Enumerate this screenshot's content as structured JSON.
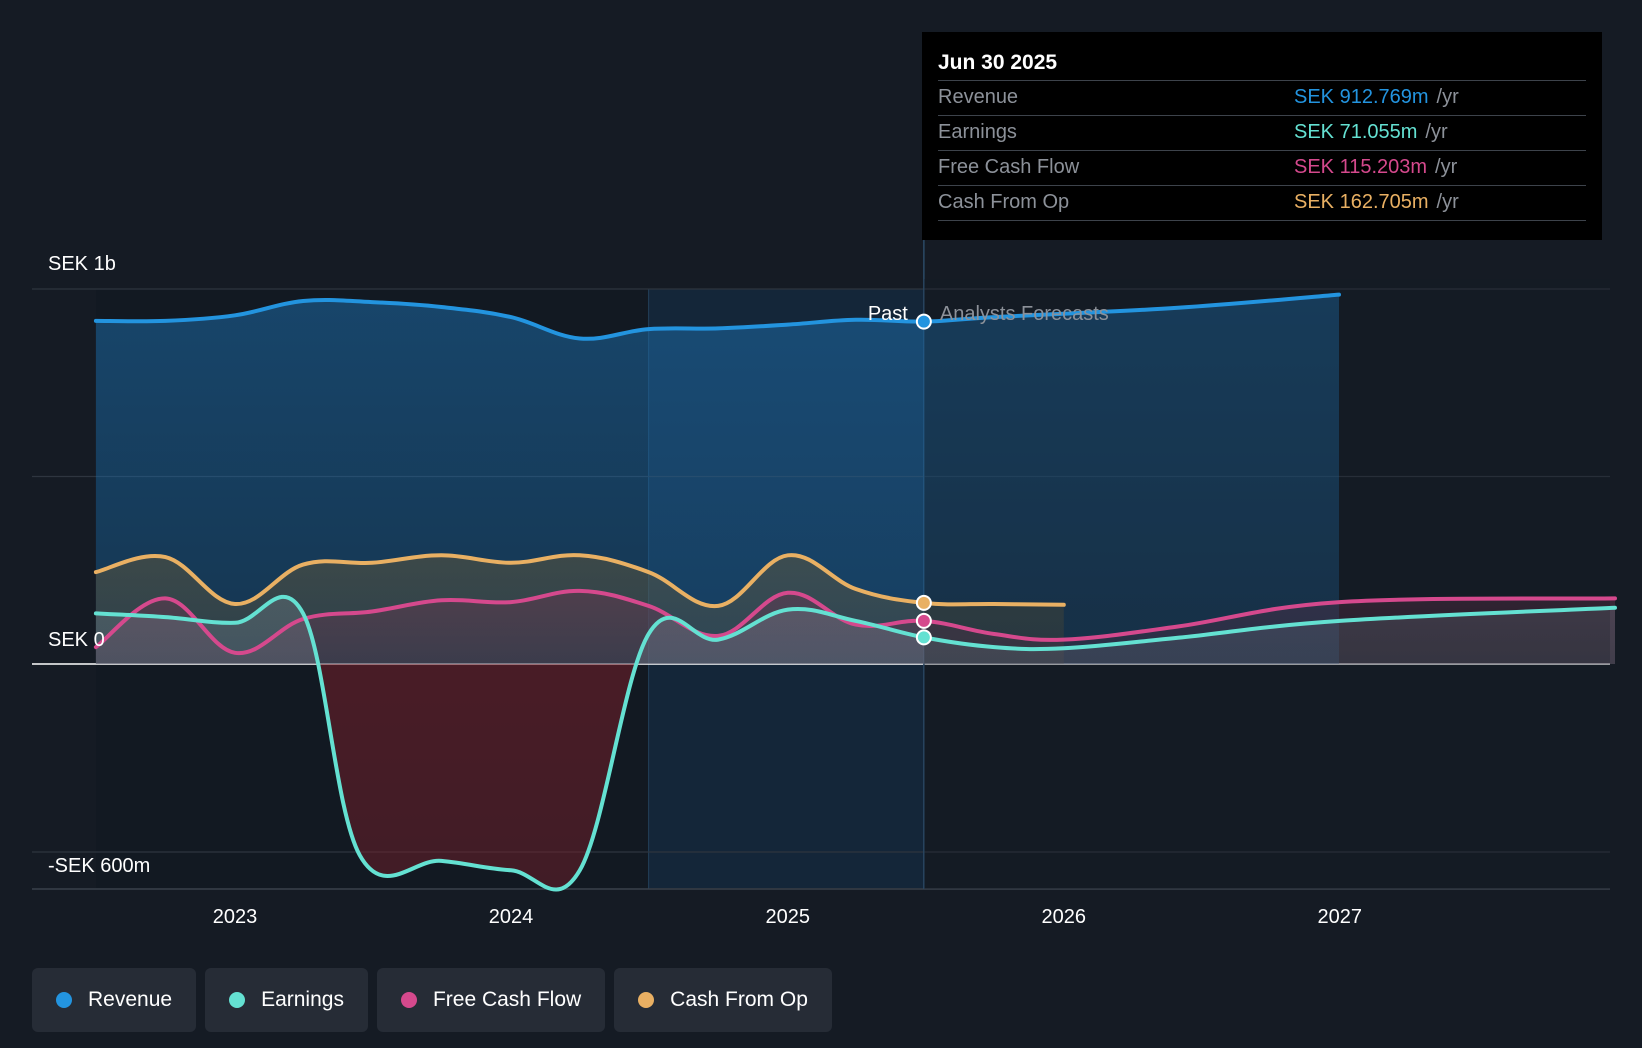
{
  "chart_data": {
    "type": "area",
    "currency": "SEK",
    "y_tick_labels": [
      "SEK 1b",
      "SEK 0",
      "-SEK 600m"
    ],
    "ylim": [
      -600,
      1000
    ],
    "x_tick_labels": [
      "2023",
      "2024",
      "2025",
      "2026",
      "2027"
    ],
    "xlim": [
      "2022-07-01",
      "2027-12-31"
    ],
    "past_label": "Past",
    "forecast_label": "Analysts Forecasts",
    "divider_date": "2025-06-30",
    "series": [
      {
        "name": "Revenue",
        "color": "#2394df",
        "points": [
          [
            "2022-07-01",
            915
          ],
          [
            "2022-10-01",
            915
          ],
          [
            "2023-01-01",
            930
          ],
          [
            "2023-04-01",
            968
          ],
          [
            "2023-07-01",
            965
          ],
          [
            "2023-10-01",
            952
          ],
          [
            "2024-01-01",
            925
          ],
          [
            "2024-04-01",
            868
          ],
          [
            "2024-07-01",
            893
          ],
          [
            "2024-10-01",
            895
          ],
          [
            "2025-01-01",
            905
          ],
          [
            "2025-04-01",
            918
          ],
          [
            "2025-06-30",
            913
          ],
          [
            "2025-10-01",
            925
          ],
          [
            "2026-06-01",
            950
          ],
          [
            "2026-12-31",
            985
          ]
        ]
      },
      {
        "name": "Earnings",
        "color": "#64e1d2",
        "points": [
          [
            "2022-07-01",
            135
          ],
          [
            "2022-10-01",
            125
          ],
          [
            "2023-01-01",
            110
          ],
          [
            "2023-04-01",
            135
          ],
          [
            "2023-06-15",
            -510
          ],
          [
            "2023-10-01",
            -525
          ],
          [
            "2024-01-01",
            -550
          ],
          [
            "2024-04-01",
            -550
          ],
          [
            "2024-07-01",
            80
          ],
          [
            "2024-10-01",
            65
          ],
          [
            "2025-01-01",
            145
          ],
          [
            "2025-04-01",
            115
          ],
          [
            "2025-06-30",
            71
          ],
          [
            "2025-10-01",
            45
          ],
          [
            "2026-01-01",
            42
          ],
          [
            "2026-06-01",
            70
          ],
          [
            "2027-01-01",
            115
          ],
          [
            "2027-12-31",
            150
          ]
        ]
      },
      {
        "name": "Free Cash Flow",
        "color": "#d5498d",
        "points": [
          [
            "2022-07-01",
            45
          ],
          [
            "2022-10-01",
            175
          ],
          [
            "2023-01-01",
            30
          ],
          [
            "2023-04-01",
            120
          ],
          [
            "2023-07-01",
            140
          ],
          [
            "2023-10-01",
            170
          ],
          [
            "2024-01-01",
            165
          ],
          [
            "2024-04-01",
            195
          ],
          [
            "2024-07-01",
            155
          ],
          [
            "2024-10-01",
            75
          ],
          [
            "2025-01-01",
            190
          ],
          [
            "2025-04-01",
            105
          ],
          [
            "2025-06-30",
            115
          ],
          [
            "2025-10-01",
            80
          ],
          [
            "2026-01-01",
            65
          ],
          [
            "2026-06-01",
            100
          ],
          [
            "2027-01-01",
            165
          ],
          [
            "2027-12-31",
            175
          ]
        ]
      },
      {
        "name": "Cash From Op",
        "color": "#e9b063",
        "points": [
          [
            "2022-07-01",
            245
          ],
          [
            "2022-10-01",
            285
          ],
          [
            "2023-01-01",
            160
          ],
          [
            "2023-04-01",
            265
          ],
          [
            "2023-07-01",
            270
          ],
          [
            "2023-10-01",
            290
          ],
          [
            "2024-01-01",
            270
          ],
          [
            "2024-04-01",
            290
          ],
          [
            "2024-07-01",
            245
          ],
          [
            "2024-10-01",
            155
          ],
          [
            "2025-01-01",
            290
          ],
          [
            "2025-04-01",
            200
          ],
          [
            "2025-06-30",
            163
          ],
          [
            "2025-10-01",
            160
          ],
          [
            "2026-01-01",
            158
          ]
        ]
      }
    ]
  },
  "tooltip": {
    "date": "Jun 30 2025",
    "unit": "/yr",
    "rows": [
      {
        "label": "Revenue",
        "value": "SEK 912.769m",
        "color": "#2394df"
      },
      {
        "label": "Earnings",
        "value": "SEK 71.055m",
        "color": "#64e1d2"
      },
      {
        "label": "Free Cash Flow",
        "value": "SEK 115.203m",
        "color": "#d5498d"
      },
      {
        "label": "Cash From Op",
        "value": "SEK 162.705m",
        "color": "#e9b063"
      }
    ]
  },
  "legend": [
    {
      "label": "Revenue",
      "color": "#2394df"
    },
    {
      "label": "Earnings",
      "color": "#64e1d2"
    },
    {
      "label": "Free Cash Flow",
      "color": "#d5498d"
    },
    {
      "label": "Cash From Op",
      "color": "#e9b063"
    }
  ]
}
